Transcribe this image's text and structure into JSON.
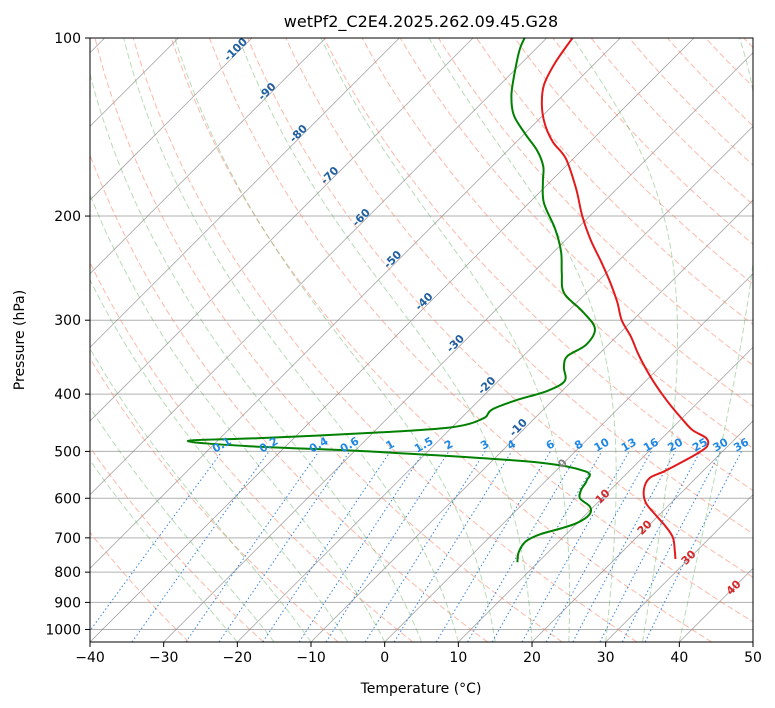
{
  "chart_data": {
    "type": "skew-t",
    "title": "wetPf2_C2E4.2025.262.09.45.G28",
    "xlabel": "Temperature (°C)",
    "ylabel": "Pressure (hPa)",
    "xlim": [
      -40,
      50
    ],
    "ylim": [
      1050,
      100
    ],
    "x_ticks": [
      -40,
      -30,
      -20,
      -10,
      0,
      10,
      20,
      30,
      40,
      50
    ],
    "x_tick_labels": [
      "−40",
      "−30",
      "−20",
      "−10",
      "0",
      "10",
      "20",
      "30",
      "40",
      "50"
    ],
    "y_ticks": [
      1000,
      900,
      800,
      700,
      600,
      500,
      400,
      300,
      200,
      100
    ],
    "y_tick_labels": [
      "1000",
      "900",
      "800",
      "700",
      "600",
      "500",
      "400",
      "300",
      "200",
      "100"
    ],
    "grid": true,
    "colors": {
      "temperature": "#e31a1c",
      "dewpoint": "#008000",
      "dry_adiabat": "#fa8060",
      "moist_adiabat": "#60b060",
      "mixing_ratio": "#1f77d4",
      "isotherm": "#808080",
      "isobar": "#b0b0b0",
      "isotherm_label": "#1f5fa0",
      "mixing_label": "#1f88e5",
      "dry_label": "#d62728",
      "zero_label": "#808080"
    },
    "series": [
      {
        "name": "Temperature",
        "pressure": [
          760,
          740,
          700,
          670,
          640,
          610,
          580,
          555,
          540,
          520,
          505,
          490,
          475,
          460,
          440,
          420,
          400,
          380,
          360,
          340,
          320,
          300,
          280,
          260,
          240,
          220,
          200,
          180,
          160,
          150,
          140,
          130,
          120,
          110,
          100
        ],
        "values": [
          28.2,
          27.2,
          25.0,
          22.5,
          19.5,
          16.5,
          14.5,
          13.7,
          14.8,
          16.0,
          16.8,
          17.2,
          16.0,
          13.0,
          10.0,
          7.0,
          4.0,
          1.0,
          -2.0,
          -5.0,
          -8.0,
          -11.5,
          -14.5,
          -18.0,
          -22.0,
          -26.5,
          -31.0,
          -35.5,
          -41.0,
          -45.0,
          -48.5,
          -51.5,
          -54.0,
          -55.5,
          -56.5
        ]
      },
      {
        "name": "Dewpoint",
        "pressure": [
          770,
          740,
          710,
          690,
          675,
          660,
          640,
          620,
          600,
          580,
          560,
          540,
          520,
          500,
          490,
          480,
          475,
          465,
          455,
          440,
          425,
          410,
          395,
          380,
          360,
          345,
          330,
          310,
          290,
          270,
          250,
          230,
          210,
          190,
          175,
          165,
          155,
          145,
          135,
          125,
          115,
          105,
          100
        ],
        "values": [
          7.2,
          6.0,
          5.5,
          6.5,
          8.5,
          10.0,
          10.5,
          9.5,
          7.0,
          6.0,
          5.5,
          4.0,
          -5.0,
          -28.0,
          -45.0,
          -54.0,
          -45.0,
          -30.0,
          -20.0,
          -17.0,
          -17.0,
          -15.0,
          -12.0,
          -11.0,
          -13.0,
          -14.0,
          -13.0,
          -14.0,
          -18.0,
          -23.0,
          -26.0,
          -29.0,
          -33.0,
          -38.0,
          -41.0,
          -43.0,
          -46.0,
          -50.0,
          -54.0,
          -57.0,
          -59.5,
          -62.0,
          -63.0
        ]
      }
    ],
    "isotherm_labels": [
      "-100",
      "-90",
      "-80",
      "-70",
      "-60",
      "-50",
      "-40",
      "-30",
      "-20",
      "-10"
    ],
    "mixing_ratio_labels": [
      "0.1",
      "0.2",
      "0.4",
      "0.6",
      "1",
      "1.5",
      "2",
      "3",
      "4",
      "6",
      "8",
      "10",
      "13",
      "16",
      "20",
      "25",
      "30",
      "36"
    ],
    "dry_adiabat_labels": [
      "10",
      "20",
      "30",
      "40"
    ],
    "freezing_label": "0"
  }
}
